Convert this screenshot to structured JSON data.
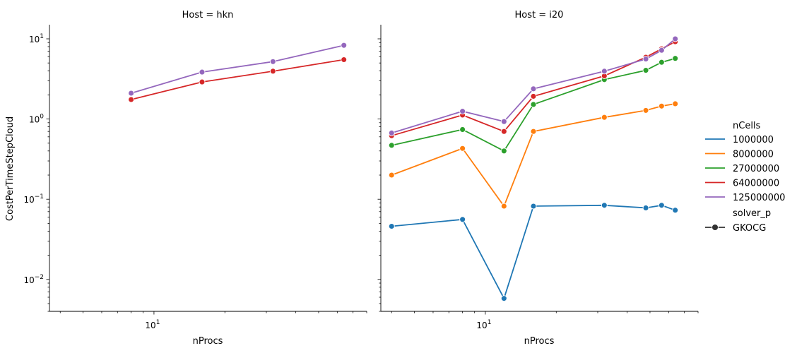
{
  "chart_data": [
    {
      "type": "line",
      "title": "Host = hkn",
      "xlabel": "nProcs",
      "ylabel": "CostPerTimeStepCloud",
      "xscale": "log",
      "yscale": "log",
      "xlim": [
        3.6,
        80
      ],
      "ylim": [
        0.004,
        15
      ],
      "grid": false,
      "series": [
        {
          "name": "64000000",
          "x": [
            8,
            16,
            32,
            64
          ],
          "values": [
            1.75,
            2.9,
            3.95,
            5.5
          ]
        },
        {
          "name": "125000000",
          "x": [
            8,
            16,
            32,
            64
          ],
          "values": [
            2.1,
            3.85,
            5.2,
            8.3
          ]
        }
      ]
    },
    {
      "type": "line",
      "title": "Host = i20",
      "xlabel": "nProcs",
      "ylabel": "",
      "xscale": "log",
      "yscale": "log",
      "xlim": [
        3.6,
        80
      ],
      "ylim": [
        0.004,
        15
      ],
      "grid": false,
      "series": [
        {
          "name": "1000000",
          "x": [
            4,
            8,
            12,
            16,
            32,
            48,
            56,
            64
          ],
          "values": [
            0.046,
            0.056,
            0.0058,
            0.082,
            0.084,
            0.078,
            0.084,
            0.073
          ]
        },
        {
          "name": "8000000",
          "x": [
            4,
            8,
            12,
            16,
            32,
            48,
            56,
            64
          ],
          "values": [
            0.2,
            0.43,
            0.082,
            0.7,
            1.05,
            1.28,
            1.45,
            1.55
          ]
        },
        {
          "name": "27000000",
          "x": [
            4,
            8,
            12,
            16,
            32,
            48,
            56,
            64
          ],
          "values": [
            0.47,
            0.74,
            0.4,
            1.52,
            3.1,
            4.05,
            5.1,
            5.7
          ]
        },
        {
          "name": "64000000",
          "x": [
            4,
            8,
            12,
            16,
            32,
            48,
            56,
            64
          ],
          "values": [
            0.62,
            1.12,
            0.7,
            1.92,
            3.45,
            5.9,
            7.5,
            9.2
          ]
        },
        {
          "name": "125000000",
          "x": [
            4,
            8,
            12,
            16,
            32,
            48,
            56,
            64
          ],
          "values": [
            0.67,
            1.25,
            0.93,
            2.38,
            3.95,
            5.6,
            7.2,
            10.0
          ]
        }
      ]
    }
  ],
  "y_ticks": [
    {
      "value": 0.01,
      "base": "10",
      "exp": "−2"
    },
    {
      "value": 0.1,
      "base": "10",
      "exp": "−1"
    },
    {
      "value": 1,
      "base": "10",
      "exp": "0"
    },
    {
      "value": 10,
      "base": "10",
      "exp": "1"
    }
  ],
  "x_ticks": [
    {
      "value": 10,
      "base": "10",
      "exp": "1"
    }
  ],
  "legend": {
    "hue_title": "nCells",
    "hue_entries": [
      {
        "label": "1000000",
        "color": "#1f77b4"
      },
      {
        "label": "8000000",
        "color": "#ff7f0e"
      },
      {
        "label": "27000000",
        "color": "#2ca02c"
      },
      {
        "label": "64000000",
        "color": "#d62728"
      },
      {
        "label": "125000000",
        "color": "#9467bd"
      }
    ],
    "style_title": "solver_p",
    "style_entries": [
      {
        "label": "GKOCG",
        "color": "#333333"
      }
    ]
  },
  "colors": {
    "1000000": "#1f77b4",
    "8000000": "#ff7f0e",
    "27000000": "#2ca02c",
    "64000000": "#d62728",
    "125000000": "#9467bd"
  }
}
